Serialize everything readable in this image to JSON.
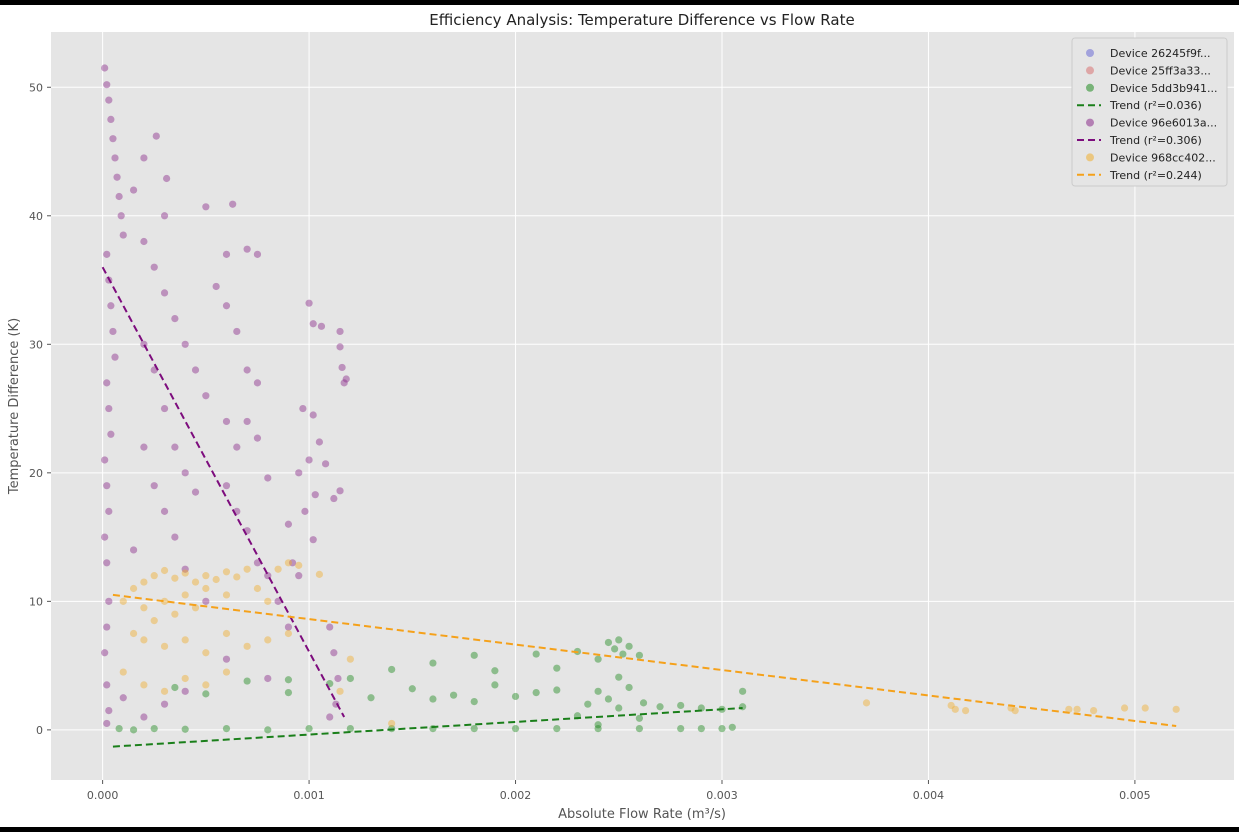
{
  "chart_data": {
    "type": "scatter",
    "title": "Efficiency Analysis: Temperature Difference vs Flow Rate",
    "xlabel": "Absolute Flow Rate (m³/s)",
    "ylabel": "Temperature Difference (K)",
    "xlim": [
      -0.00025,
      0.00548
    ],
    "ylim": [
      -3.9,
      54.3
    ],
    "x_ticks": [
      0.0,
      0.001,
      0.002,
      0.003,
      0.004,
      0.005
    ],
    "x_tick_labels": [
      "0.000",
      "0.001",
      "0.002",
      "0.003",
      "0.004",
      "0.005"
    ],
    "y_ticks": [
      0,
      10,
      20,
      30,
      40,
      50
    ],
    "y_tick_labels": [
      "0",
      "10",
      "20",
      "30",
      "40",
      "50"
    ],
    "grid": true,
    "legend_position": "top-right",
    "background_color": "#e5e5e5",
    "series": [
      {
        "name": "Device 26245f9f...",
        "kind": "scatter",
        "color": "#6b6bd6",
        "points": []
      },
      {
        "name": "Device 25ff3a33...",
        "kind": "scatter",
        "color": "#d97373",
        "points": []
      },
      {
        "name": "Device 5dd3b941...",
        "kind": "scatter",
        "color": "#1f8a1f",
        "points": [
          [
            8e-05,
            0.1
          ],
          [
            0.00015,
            0.0
          ],
          [
            0.00025,
            0.1
          ],
          [
            0.0004,
            0.05
          ],
          [
            0.0006,
            0.1
          ],
          [
            0.0008,
            0.0
          ],
          [
            0.001,
            0.1
          ],
          [
            0.0012,
            0.1
          ],
          [
            0.0014,
            0.1
          ],
          [
            0.0016,
            0.1
          ],
          [
            0.0018,
            0.1
          ],
          [
            0.002,
            0.1
          ],
          [
            0.0022,
            0.1
          ],
          [
            0.0024,
            0.1
          ],
          [
            0.0026,
            0.1
          ],
          [
            0.00035,
            3.3
          ],
          [
            0.0005,
            2.8
          ],
          [
            0.0007,
            3.8
          ],
          [
            0.0009,
            2.9
          ],
          [
            0.0011,
            3.6
          ],
          [
            0.0013,
            2.5
          ],
          [
            0.0015,
            3.2
          ],
          [
            0.0017,
            2.7
          ],
          [
            0.0019,
            3.5
          ],
          [
            0.0021,
            2.9
          ],
          [
            0.0012,
            4.0
          ],
          [
            0.0014,
            4.7
          ],
          [
            0.0016,
            5.2
          ],
          [
            0.0018,
            5.8
          ],
          [
            0.0019,
            4.6
          ],
          [
            0.0021,
            5.9
          ],
          [
            0.0022,
            4.8
          ],
          [
            0.0023,
            6.1
          ],
          [
            0.0024,
            5.5
          ],
          [
            0.0026,
            5.8
          ],
          [
            0.00245,
            6.8
          ],
          [
            0.0025,
            7.0
          ],
          [
            0.00248,
            6.3
          ],
          [
            0.00252,
            5.9
          ],
          [
            0.00255,
            6.5
          ],
          [
            0.0023,
            1.1
          ],
          [
            0.00235,
            2.0
          ],
          [
            0.0024,
            3.0
          ],
          [
            0.00245,
            2.4
          ],
          [
            0.0025,
            1.7
          ],
          [
            0.00255,
            3.3
          ],
          [
            0.0026,
            0.9
          ],
          [
            0.00262,
            2.1
          ],
          [
            0.0024,
            0.4
          ],
          [
            0.0025,
            4.1
          ],
          [
            0.0027,
            1.8
          ],
          [
            0.0028,
            1.9
          ],
          [
            0.0029,
            1.7
          ],
          [
            0.003,
            1.6
          ],
          [
            0.0031,
            1.8
          ],
          [
            0.0028,
            0.1
          ],
          [
            0.0029,
            0.1
          ],
          [
            0.003,
            0.1
          ],
          [
            0.00305,
            0.2
          ],
          [
            0.0031,
            3.0
          ],
          [
            0.002,
            2.6
          ],
          [
            0.0022,
            3.1
          ],
          [
            0.0018,
            2.2
          ],
          [
            0.0016,
            2.4
          ],
          [
            0.0009,
            3.9
          ]
        ]
      },
      {
        "name": "Trend (r²=0.036)",
        "kind": "trend",
        "color": "#1a7f1a",
        "line": [
          [
            5e-05,
            -1.3
          ],
          [
            0.0031,
            1.7
          ]
        ]
      },
      {
        "name": "Device 96e6013a...",
        "kind": "scatter",
        "color": "#8a2b8a",
        "points": [
          [
            1e-05,
            51.5
          ],
          [
            2e-05,
            50.2
          ],
          [
            3e-05,
            49.0
          ],
          [
            4e-05,
            47.5
          ],
          [
            5e-05,
            46.0
          ],
          [
            6e-05,
            44.5
          ],
          [
            7e-05,
            43.0
          ],
          [
            8e-05,
            41.5
          ],
          [
            9e-05,
            40.0
          ],
          [
            0.0001,
            38.5
          ],
          [
            2e-05,
            37.0
          ],
          [
            3e-05,
            35.0
          ],
          [
            4e-05,
            33.0
          ],
          [
            5e-05,
            31.0
          ],
          [
            6e-05,
            29.0
          ],
          [
            2e-05,
            27.0
          ],
          [
            3e-05,
            25.0
          ],
          [
            4e-05,
            23.0
          ],
          [
            1e-05,
            21.0
          ],
          [
            2e-05,
            19.0
          ],
          [
            3e-05,
            17.0
          ],
          [
            1e-05,
            15.0
          ],
          [
            2e-05,
            13.0
          ],
          [
            3e-05,
            10.0
          ],
          [
            2e-05,
            8.0
          ],
          [
            1e-05,
            6.0
          ],
          [
            2e-05,
            3.5
          ],
          [
            3e-05,
            1.5
          ],
          [
            2e-05,
            0.5
          ],
          [
            0.00015,
            42.0
          ],
          [
            0.0002,
            44.5
          ],
          [
            0.00026,
            46.2
          ],
          [
            0.00031,
            42.9
          ],
          [
            0.0003,
            40.0
          ],
          [
            0.0002,
            38.0
          ],
          [
            0.00025,
            36.0
          ],
          [
            0.0003,
            34.0
          ],
          [
            0.00035,
            32.0
          ],
          [
            0.0004,
            30.0
          ],
          [
            0.00045,
            28.0
          ],
          [
            0.0005,
            26.0
          ],
          [
            0.0002,
            30.0
          ],
          [
            0.00025,
            28.0
          ],
          [
            0.0003,
            25.0
          ],
          [
            0.00035,
            22.0
          ],
          [
            0.0004,
            20.0
          ],
          [
            0.00045,
            18.5
          ],
          [
            0.0002,
            22.0
          ],
          [
            0.00025,
            19.0
          ],
          [
            0.0003,
            17.0
          ],
          [
            0.00035,
            15.0
          ],
          [
            0.00015,
            14.0
          ],
          [
            0.0004,
            12.5
          ],
          [
            0.0005,
            10.0
          ],
          [
            0.0005,
            40.7
          ],
          [
            0.00063,
            40.9
          ],
          [
            0.0006,
            37.0
          ],
          [
            0.0007,
            37.4
          ],
          [
            0.00075,
            37.0
          ],
          [
            0.00055,
            34.5
          ],
          [
            0.0006,
            33.0
          ],
          [
            0.00065,
            31.0
          ],
          [
            0.0007,
            28.0
          ],
          [
            0.00075,
            27.0
          ],
          [
            0.0006,
            24.0
          ],
          [
            0.00065,
            22.0
          ],
          [
            0.0007,
            24.0
          ],
          [
            0.00075,
            22.7
          ],
          [
            0.0008,
            19.6
          ],
          [
            0.0006,
            19.0
          ],
          [
            0.00065,
            17.0
          ],
          [
            0.0007,
            15.5
          ],
          [
            0.00075,
            13.0
          ],
          [
            0.0008,
            12.0
          ],
          [
            0.00085,
            10.0
          ],
          [
            0.0009,
            8.0
          ],
          [
            0.00095,
            12.0
          ],
          [
            0.0009,
            16.0
          ],
          [
            0.00095,
            20.0
          ],
          [
            0.00097,
            25.0
          ],
          [
            0.001,
            33.2
          ],
          [
            0.00102,
            31.6
          ],
          [
            0.00106,
            31.4
          ],
          [
            0.00115,
            31.0
          ],
          [
            0.00115,
            29.8
          ],
          [
            0.00116,
            28.2
          ],
          [
            0.00117,
            27.0
          ],
          [
            0.00118,
            27.3
          ],
          [
            0.00102,
            24.5
          ],
          [
            0.00105,
            22.4
          ],
          [
            0.001,
            21.0
          ],
          [
            0.00103,
            18.3
          ],
          [
            0.00108,
            20.7
          ],
          [
            0.00112,
            18.0
          ],
          [
            0.00115,
            18.6
          ],
          [
            0.00098,
            17.0
          ],
          [
            0.00102,
            14.8
          ],
          [
            0.00092,
            13.0
          ],
          [
            0.0011,
            8.0
          ],
          [
            0.00112,
            6.0
          ],
          [
            0.00114,
            4.0
          ],
          [
            0.00113,
            2.0
          ],
          [
            0.0011,
            1.0
          ],
          [
            0.0008,
            4.0
          ],
          [
            0.0006,
            5.5
          ],
          [
            0.0004,
            3.0
          ],
          [
            0.0003,
            2.0
          ],
          [
            0.0002,
            1.0
          ],
          [
            0.0001,
            2.5
          ]
        ]
      },
      {
        "name": "Trend (r²=0.306)",
        "kind": "trend",
        "color": "#7d0c7d",
        "line": [
          [
            0.0,
            36.0
          ],
          [
            0.00117,
            1.0
          ]
        ]
      },
      {
        "name": "Device 968cc402...",
        "kind": "scatter",
        "color": "#f0ae2e",
        "points": [
          [
            0.0001,
            10.0
          ],
          [
            0.00015,
            11.0
          ],
          [
            0.0002,
            11.5
          ],
          [
            0.00025,
            12.0
          ],
          [
            0.0003,
            12.4
          ],
          [
            0.00035,
            11.8
          ],
          [
            0.0004,
            12.2
          ],
          [
            0.00045,
            11.5
          ],
          [
            0.0005,
            12.0
          ],
          [
            0.00055,
            11.7
          ],
          [
            0.0006,
            12.3
          ],
          [
            0.00065,
            11.9
          ],
          [
            0.0007,
            12.5
          ],
          [
            0.0002,
            9.5
          ],
          [
            0.0003,
            10.0
          ],
          [
            0.0004,
            10.5
          ],
          [
            0.0005,
            11.0
          ],
          [
            0.0006,
            10.5
          ],
          [
            0.00025,
            8.5
          ],
          [
            0.00035,
            9.0
          ],
          [
            0.00045,
            9.5
          ],
          [
            0.00015,
            7.5
          ],
          [
            0.0002,
            7.0
          ],
          [
            0.0003,
            6.5
          ],
          [
            0.0004,
            7.0
          ],
          [
            0.0005,
            6.0
          ],
          [
            0.0006,
            7.5
          ],
          [
            0.0007,
            6.5
          ],
          [
            0.0008,
            7.0
          ],
          [
            0.0009,
            7.5
          ],
          [
            0.00075,
            11.0
          ],
          [
            0.0008,
            10.0
          ],
          [
            0.00085,
            12.5
          ],
          [
            0.0009,
            13.0
          ],
          [
            0.00095,
            12.8
          ],
          [
            0.00105,
            12.1
          ],
          [
            0.0001,
            4.5
          ],
          [
            0.0002,
            3.5
          ],
          [
            0.0003,
            3.0
          ],
          [
            0.0004,
            4.0
          ],
          [
            0.0005,
            3.5
          ],
          [
            0.0006,
            4.5
          ],
          [
            0.0012,
            5.5
          ],
          [
            0.00115,
            3.0
          ],
          [
            0.0014,
            0.5
          ],
          [
            0.0037,
            2.1
          ],
          [
            0.00411,
            1.9
          ],
          [
            0.00413,
            1.6
          ],
          [
            0.00418,
            1.5
          ],
          [
            0.0044,
            1.7
          ],
          [
            0.00442,
            1.5
          ],
          [
            0.00468,
            1.6
          ],
          [
            0.00472,
            1.6
          ],
          [
            0.0048,
            1.5
          ],
          [
            0.00495,
            1.7
          ],
          [
            0.00505,
            1.7
          ],
          [
            0.0052,
            1.6
          ]
        ]
      },
      {
        "name": "Trend (r²=0.244)",
        "kind": "trend",
        "color": "#f5a11a",
        "line": [
          [
            5e-05,
            10.5
          ],
          [
            0.0052,
            0.3
          ]
        ]
      }
    ]
  }
}
